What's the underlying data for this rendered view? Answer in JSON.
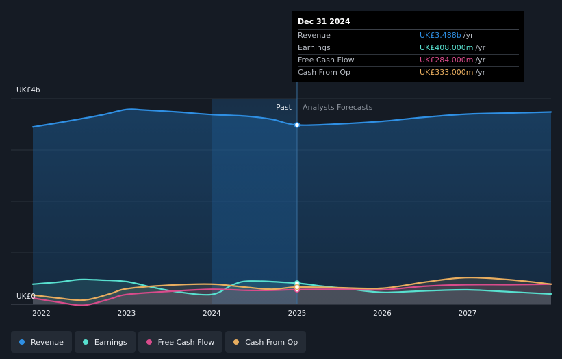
{
  "chart_data": {
    "type": "line",
    "y_unit_labels": {
      "top": "UK£4b",
      "bottom": "UK£0"
    },
    "ylim": [
      0,
      4000
    ],
    "xlim": [
      2021.9,
      2027.98
    ],
    "x_ticks": [
      "2022",
      "2023",
      "2024",
      "2025",
      "2026",
      "2027"
    ],
    "past_label": "Past",
    "forecast_label": "Analysts Forecasts",
    "divider_x": 2025.0,
    "highlight_start_x": 2024.0,
    "series": [
      {
        "name": "Revenue",
        "color": "#2f8fe3",
        "points": [
          [
            2021.9,
            3450
          ],
          [
            2022.3,
            3560
          ],
          [
            2022.7,
            3680
          ],
          [
            2023.0,
            3790
          ],
          [
            2023.2,
            3780
          ],
          [
            2023.6,
            3740
          ],
          [
            2024.0,
            3690
          ],
          [
            2024.4,
            3660
          ],
          [
            2024.7,
            3600
          ],
          [
            2025.0,
            3488
          ],
          [
            2025.5,
            3510
          ],
          [
            2026.0,
            3560
          ],
          [
            2026.5,
            3640
          ],
          [
            2027.0,
            3700
          ],
          [
            2027.5,
            3720
          ],
          [
            2027.98,
            3740
          ]
        ]
      },
      {
        "name": "Earnings",
        "color": "#58e0cf",
        "points": [
          [
            2021.9,
            390
          ],
          [
            2022.2,
            430
          ],
          [
            2022.45,
            480
          ],
          [
            2022.7,
            470
          ],
          [
            2023.0,
            440
          ],
          [
            2023.3,
            330
          ],
          [
            2023.6,
            240
          ],
          [
            2024.0,
            190
          ],
          [
            2024.25,
            380
          ],
          [
            2024.45,
            450
          ],
          [
            2025.0,
            408
          ],
          [
            2025.3,
            350
          ],
          [
            2025.6,
            300
          ],
          [
            2026.0,
            230
          ],
          [
            2026.5,
            260
          ],
          [
            2027.0,
            280
          ],
          [
            2027.5,
            240
          ],
          [
            2027.98,
            200
          ]
        ]
      },
      {
        "name": "Free Cash Flow",
        "color": "#d94b8b",
        "points": [
          [
            2021.9,
            120
          ],
          [
            2022.2,
            40
          ],
          [
            2022.5,
            -20
          ],
          [
            2022.8,
            100
          ],
          [
            2023.0,
            190
          ],
          [
            2023.5,
            250
          ],
          [
            2024.0,
            290
          ],
          [
            2024.4,
            270
          ],
          [
            2024.7,
            270
          ],
          [
            2025.0,
            284
          ],
          [
            2025.5,
            290
          ],
          [
            2026.0,
            280
          ],
          [
            2026.5,
            350
          ],
          [
            2027.0,
            380
          ],
          [
            2027.5,
            380
          ],
          [
            2027.98,
            390
          ]
        ]
      },
      {
        "name": "Cash From Op",
        "color": "#e8ad5f",
        "points": [
          [
            2021.9,
            180
          ],
          [
            2022.2,
            120
          ],
          [
            2022.5,
            80
          ],
          [
            2022.8,
            200
          ],
          [
            2023.0,
            300
          ],
          [
            2023.5,
            370
          ],
          [
            2024.0,
            390
          ],
          [
            2024.4,
            330
          ],
          [
            2024.7,
            290
          ],
          [
            2025.0,
            333
          ],
          [
            2025.5,
            320
          ],
          [
            2026.0,
            310
          ],
          [
            2026.5,
            430
          ],
          [
            2026.9,
            510
          ],
          [
            2027.2,
            510
          ],
          [
            2027.6,
            460
          ],
          [
            2027.98,
            390
          ]
        ]
      }
    ]
  },
  "tooltip": {
    "date": "Dec 31 2024",
    "rows": [
      {
        "label": "Revenue",
        "value": "UK£3.488b",
        "unit": "/yr",
        "color": "#2f8fe3"
      },
      {
        "label": "Earnings",
        "value": "UK£408.000m",
        "unit": "/yr",
        "color": "#58e0cf"
      },
      {
        "label": "Free Cash Flow",
        "value": "UK£284.000m",
        "unit": "/yr",
        "color": "#d94b8b"
      },
      {
        "label": "Cash From Op",
        "value": "UK£333.000m",
        "unit": "/yr",
        "color": "#e8ad5f"
      }
    ]
  },
  "legend": [
    {
      "label": "Revenue",
      "color": "#2f8fe3"
    },
    {
      "label": "Earnings",
      "color": "#58e0cf"
    },
    {
      "label": "Free Cash Flow",
      "color": "#d94b8b"
    },
    {
      "label": "Cash From Op",
      "color": "#e8ad5f"
    }
  ]
}
